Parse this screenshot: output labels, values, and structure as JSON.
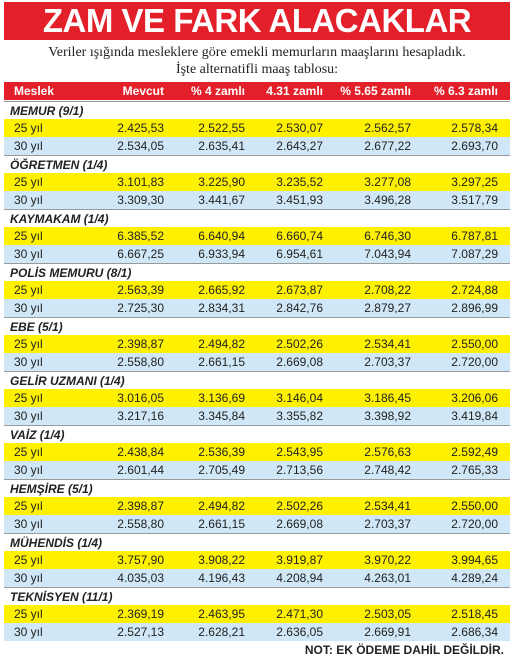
{
  "title": "ZAM VE FARK ALACAKLAR",
  "subtitle": "Veriler ışığında mesleklere göre emekli memurların maaşlarını hesapladık. İşte alternatifli maaş tablosu:",
  "table": {
    "header": [
      "Meslek",
      "Mevcut",
      "% 4 zamlı",
      "4.31 zamlı",
      "% 5.65 zamlı",
      "% 6.3 zamlı"
    ],
    "groups": [
      {
        "name": "MEMUR (9/1)",
        "rows": [
          [
            "25 yıl",
            "2.425,53",
            "2.522,55",
            "2.530,07",
            "2.562,57",
            "2.578,34"
          ],
          [
            "30 yıl",
            "2.534,05",
            "2.635,41",
            "2.643,27",
            "2.677,22",
            "2.693,70"
          ]
        ]
      },
      {
        "name": "ÖĞRETMEN (1/4)",
        "rows": [
          [
            "25 yıl",
            "3.101,83",
            "3.225,90",
            "3.235,52",
            "3.277,08",
            "3.297,25"
          ],
          [
            "30 yıl",
            "3.309,30",
            "3.441,67",
            "3.451,93",
            "3.496,28",
            "3.517,79"
          ]
        ]
      },
      {
        "name": "KAYMAKAM (1/4)",
        "rows": [
          [
            "25 yıl",
            "6.385,52",
            "6.640,94",
            "6.660,74",
            "6.746,30",
            "6.787,81"
          ],
          [
            "30 yıl",
            "6.667,25",
            "6.933,94",
            "6.954,61",
            "7.043,94",
            "7.087,29"
          ]
        ]
      },
      {
        "name": "POLİS MEMURU (8/1)",
        "rows": [
          [
            "25 yıl",
            "2.563,39",
            "2.665,92",
            "2.673,87",
            "2.708,22",
            "2.724,88"
          ],
          [
            "30 yıl",
            "2.725,30",
            "2.834,31",
            "2.842,76",
            "2.879,27",
            "2.896,99"
          ]
        ]
      },
      {
        "name": "EBE (5/1)",
        "rows": [
          [
            "25 yıl",
            "2.398,87",
            "2.494,82",
            "2.502,26",
            "2.534,41",
            "2.550,00"
          ],
          [
            "30 yıl",
            "2.558,80",
            "2.661,15",
            "2.669,08",
            "2.703,37",
            "2.720,00"
          ]
        ]
      },
      {
        "name": "GELİR UZMANI (1/4)",
        "rows": [
          [
            "25 yıl",
            "3.016,05",
            "3.136,69",
            "3.146,04",
            "3.186,45",
            "3.206,06"
          ],
          [
            "30 yıl",
            "3.217,16",
            "3.345,84",
            "3.355,82",
            "3.398,92",
            "3.419,84"
          ]
        ]
      },
      {
        "name": "VAİZ (1/4)",
        "rows": [
          [
            "25 yıl",
            "2.438,84",
            "2.536,39",
            "2.543,95",
            "2.576,63",
            "2.592,49"
          ],
          [
            "30 yıl",
            "2.601,44",
            "2.705,49",
            "2.713,56",
            "2.748,42",
            "2.765,33"
          ]
        ]
      },
      {
        "name": "HEMŞİRE (5/1)",
        "rows": [
          [
            "25 yıl",
            "2.398,87",
            "2.494,82",
            "2.502,26",
            "2.534,41",
            "2.550,00"
          ],
          [
            "30 yıl",
            "2.558,80",
            "2.661,15",
            "2.669,08",
            "2.703,37",
            "2.720,00"
          ]
        ]
      },
      {
        "name": "MÜHENDİS (1/4)",
        "rows": [
          [
            "25 yıl",
            "3.757,90",
            "3.908,22",
            "3.919,87",
            "3.970,22",
            "3.994,65"
          ],
          [
            "30 yıl",
            "4.035,03",
            "4.196,43",
            "4.208,94",
            "4.263,01",
            "4.289,24"
          ]
        ]
      },
      {
        "name": "TEKNİSYEN (11/1)",
        "rows": [
          [
            "25 yıl",
            "2.369,19",
            "2.463,95",
            "2.471,30",
            "2.503,05",
            "2.518,45"
          ],
          [
            "30 yıl",
            "2.527,13",
            "2.628,21",
            "2.636,05",
            "2.669,91",
            "2.686,34"
          ]
        ]
      }
    ]
  },
  "footer": "NOT: EK ÖDEME DAHİL DEĞİLDİR."
}
